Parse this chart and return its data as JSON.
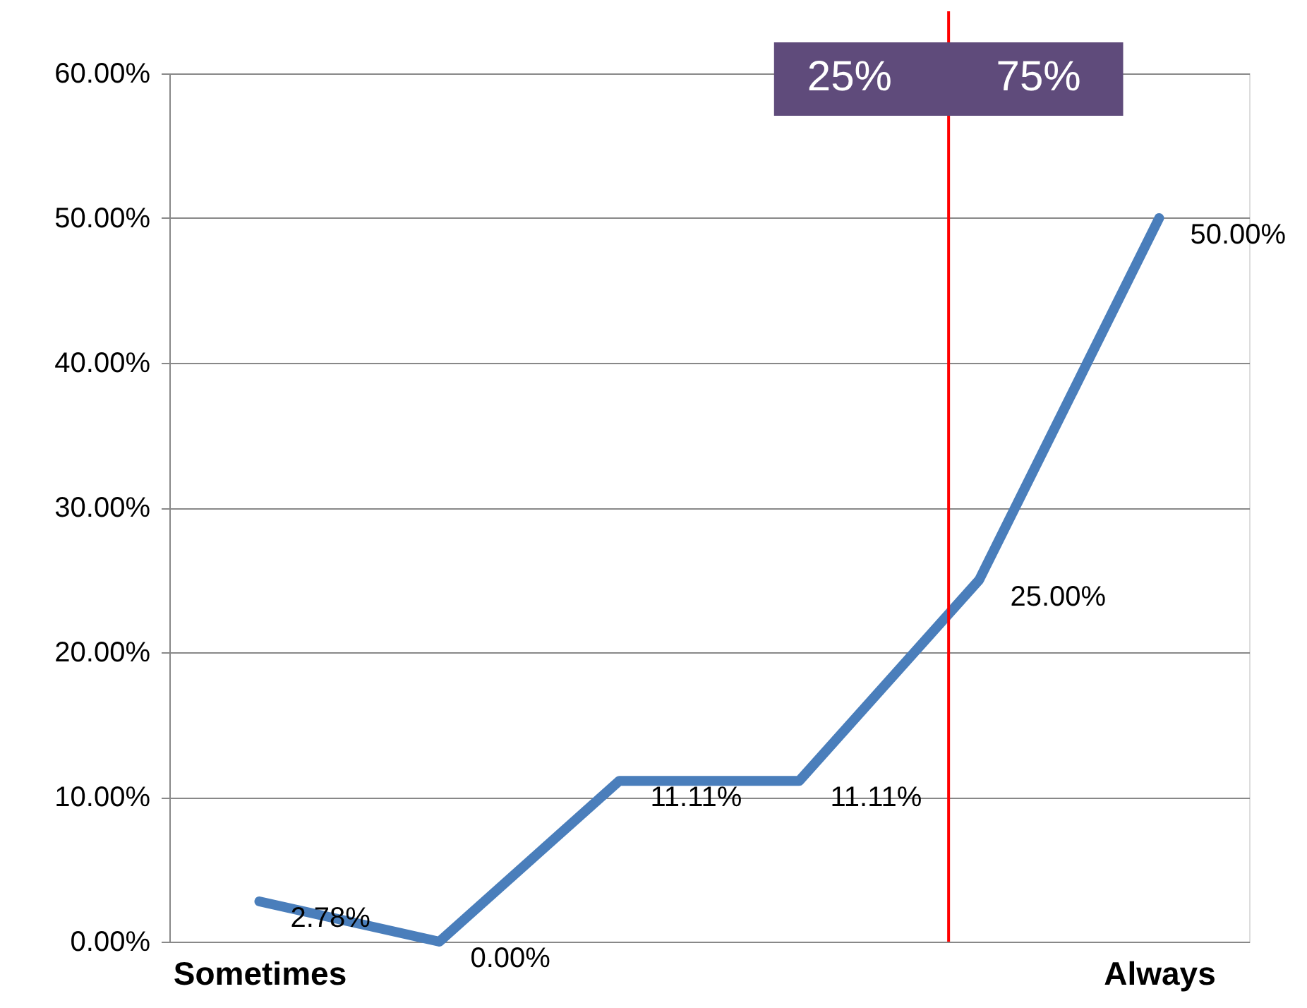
{
  "chart_data": {
    "type": "line",
    "categories": [
      "Sometimes",
      null,
      null,
      null,
      null,
      "Always"
    ],
    "series": [
      {
        "color": "#4a7ebb",
        "values": [
          2.78,
          0.0,
          11.11,
          11.11,
          25.0,
          50.0
        ],
        "value_labels": [
          "2.78%",
          "0.00%",
          "11.11%",
          "11.11%",
          "25.00%",
          "50.00%"
        ]
      }
    ],
    "ylim": [
      0,
      60
    ],
    "yticks": [
      {
        "value": 0,
        "label": "0.00%"
      },
      {
        "value": 10,
        "label": "10.00%"
      },
      {
        "value": 20,
        "label": "20.00%"
      },
      {
        "value": 30,
        "label": "30.00%"
      },
      {
        "value": 40,
        "label": "40.00%"
      },
      {
        "value": 50,
        "label": "50.00%"
      },
      {
        "value": 60,
        "label": "60.00%"
      }
    ],
    "annotations": [
      "25%",
      "75%"
    ],
    "grid": "y",
    "marker": "none",
    "line_style": "solid"
  }
}
